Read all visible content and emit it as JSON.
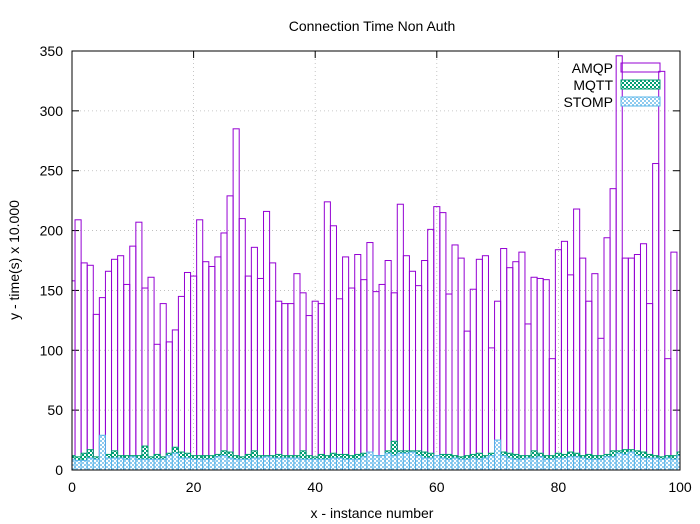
{
  "chart_data": {
    "type": "bar",
    "title": "Connection Time Non Auth",
    "xlabel": "x - instance number",
    "ylabel": "y - time(s) x 10.000",
    "xlim": [
      0,
      100
    ],
    "ylim": [
      0,
      350
    ],
    "xticks": [
      0,
      20,
      40,
      60,
      80,
      100
    ],
    "yticks": [
      0,
      50,
      100,
      150,
      200,
      250,
      300,
      350
    ],
    "grid": true,
    "legend_position": "top-right",
    "series": [
      {
        "name": "AMQP",
        "color": "#9400d3",
        "fill": "none",
        "values": [
          158,
          209,
          173,
          171,
          130,
          144,
          166,
          176,
          179,
          155,
          187,
          207,
          152,
          161,
          105,
          139,
          107,
          117,
          145,
          165,
          162,
          209,
          174,
          170,
          178,
          198,
          229,
          285,
          210,
          162,
          186,
          160,
          216,
          173,
          141,
          139,
          139,
          164,
          148,
          129,
          141,
          139,
          224,
          204,
          143,
          178,
          152,
          180,
          159,
          190,
          149,
          155,
          175,
          148,
          222,
          179,
          166,
          154,
          175,
          201,
          220,
          215,
          147,
          188,
          177,
          116,
          151,
          176,
          179,
          102,
          141,
          185,
          169,
          174,
          182,
          122,
          161,
          160,
          159,
          93,
          184,
          191,
          163,
          218,
          177,
          141,
          164,
          110,
          194,
          235,
          346,
          177,
          177,
          180,
          189,
          139,
          256,
          333,
          93,
          182,
          10
        ]
      },
      {
        "name": "MQTT",
        "color": "#009e73",
        "fill": "checker",
        "values": [
          12,
          11,
          14,
          17,
          11,
          11,
          13,
          16,
          12,
          12,
          12,
          12,
          20,
          11,
          13,
          11,
          14,
          19,
          15,
          14,
          12,
          12,
          12,
          12,
          13,
          16,
          15,
          12,
          11,
          13,
          16,
          12,
          12,
          12,
          13,
          12,
          12,
          12,
          16,
          12,
          11,
          13,
          12,
          14,
          13,
          13,
          12,
          13,
          14,
          13,
          12,
          12,
          16,
          24,
          16,
          16,
          16,
          16,
          15,
          14,
          12,
          13,
          13,
          12,
          11,
          12,
          13,
          14,
          12,
          14,
          15,
          15,
          14,
          13,
          12,
          12,
          16,
          14,
          12,
          12,
          14,
          13,
          15,
          14,
          12,
          13,
          12,
          12,
          13,
          16,
          16,
          17,
          17,
          16,
          15,
          13,
          12,
          11,
          12,
          12,
          15
        ]
      },
      {
        "name": "STOMP",
        "color": "#56b4e9",
        "fill": "checker",
        "values": [
          9,
          8,
          8,
          10,
          9,
          29,
          10,
          10,
          10,
          9,
          11,
          9,
          9,
          9,
          9,
          9,
          12,
          14,
          10,
          10,
          9,
          9,
          9,
          9,
          11,
          12,
          10,
          9,
          9,
          9,
          10,
          10,
          11,
          10,
          10,
          10,
          10,
          10,
          9,
          9,
          9,
          9,
          9,
          10,
          10,
          9,
          9,
          9,
          11,
          15,
          12,
          12,
          14,
          12,
          14,
          14,
          15,
          12,
          10,
          10,
          12,
          10,
          9,
          10,
          9,
          9,
          10,
          9,
          10,
          12,
          25,
          12,
          10,
          9,
          9,
          10,
          10,
          11,
          9,
          9,
          10,
          10,
          11,
          11,
          10,
          9,
          9,
          9,
          11,
          11,
          14,
          13,
          15,
          12,
          10,
          10,
          10,
          9,
          10,
          9,
          12
        ]
      }
    ]
  }
}
